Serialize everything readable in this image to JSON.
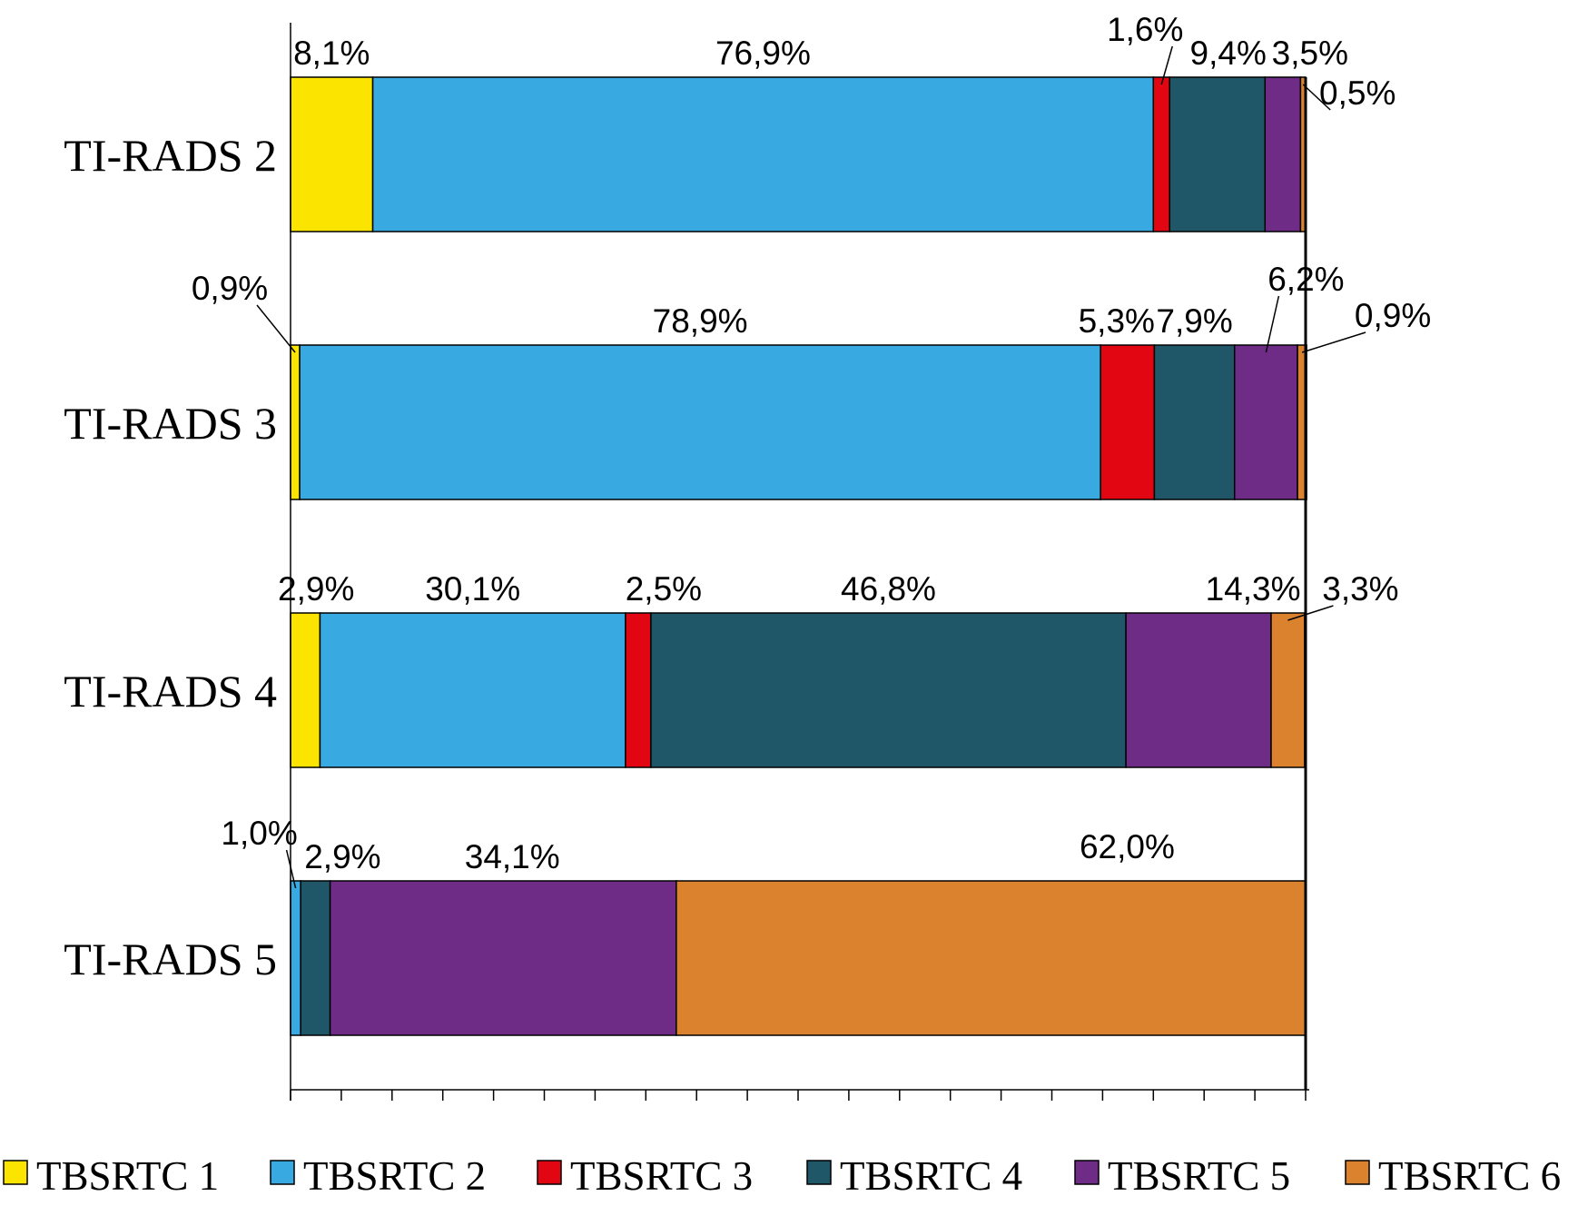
{
  "chart_data": {
    "type": "bar",
    "orientation": "horizontal",
    "stacked": true,
    "categories": [
      "TI-RADS 2",
      "TI-RADS 3",
      "TI-RADS 4",
      "TI-RADS 5"
    ],
    "xlim": [
      0,
      100
    ],
    "grid": false,
    "legend_position": "bottom",
    "series": [
      {
        "name": "TBSRTC 1",
        "color": "#FBE500",
        "values": [
          8.1,
          0.9,
          2.9,
          0.0
        ],
        "labels": [
          "8,1%",
          "0,9%",
          "2,9%",
          ""
        ]
      },
      {
        "name": "TBSRTC 2",
        "color": "#38AAE1",
        "values": [
          76.9,
          78.9,
          30.1,
          1.0
        ],
        "labels": [
          "76,9%",
          "78,9%",
          "30,1%",
          "1,0%"
        ]
      },
      {
        "name": "TBSRTC 3",
        "color": "#E20613",
        "values": [
          1.6,
          5.3,
          2.5,
          0.0
        ],
        "labels": [
          "1,6%",
          "5,3%",
          "2,5%",
          ""
        ]
      },
      {
        "name": "TBSRTC 4",
        "color": "#1F5769",
        "values": [
          9.4,
          7.9,
          46.8,
          2.9
        ],
        "labels": [
          "9,4%",
          "7,9%",
          "46,8%",
          "2,9%"
        ]
      },
      {
        "name": "TBSRTC 5",
        "color": "#6E2C87",
        "values": [
          3.5,
          6.2,
          14.3,
          34.1
        ],
        "labels": [
          "3,5%",
          "6,2%",
          "14,3%",
          "34,1%"
        ]
      },
      {
        "name": "TBSRTC 6",
        "color": "#DB822F",
        "values": [
          0.5,
          0.9,
          3.3,
          62.0
        ],
        "labels": [
          "0,5%",
          "0,9%",
          "3,3%",
          "62,0%"
        ]
      }
    ]
  }
}
